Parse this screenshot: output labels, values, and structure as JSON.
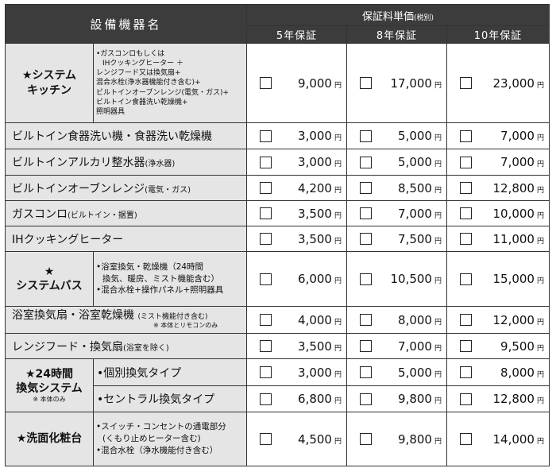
{
  "header": {
    "equipment": "設備機器名",
    "warranty_price": "保証料単価",
    "tax_note": "(税別)",
    "plans": [
      "5年保証",
      "8年保証",
      "10年保証"
    ]
  },
  "currency_unit": "円",
  "rows": [
    {
      "name": "★システムキッチン",
      "name_lines": [
        "★システム",
        "キッチン"
      ],
      "details": [
        "•ガスコンロもしくは",
        "IHクッキングヒーター ＋",
        "レンジフード又は換気扇+",
        "混合水栓(浄水器機能付き含む)+",
        "ビルトインオーブンレンジ(電気・ガス)+",
        "ビルトイン食器洗い乾燥機+",
        "照明器具"
      ],
      "prices": [
        "9,000",
        "17,000",
        "23,000"
      ]
    },
    {
      "name": "ビルトイン食器洗い機・食器洗い乾燥機",
      "prices": [
        "3,000",
        "5,000",
        "7,000"
      ]
    },
    {
      "name": "ビルトインアルカリ整水器",
      "suffix": "(浄水器)",
      "prices": [
        "3,000",
        "5,000",
        "7,000"
      ]
    },
    {
      "name": "ビルトインオーブンレンジ",
      "suffix": "(電気・ガス)",
      "prices": [
        "4,200",
        "8,500",
        "12,800"
      ]
    },
    {
      "name": "ガスコンロ",
      "suffix": "(ビルトイン・据置)",
      "prices": [
        "3,500",
        "7,000",
        "10,000"
      ]
    },
    {
      "name": "IHクッキングヒーター",
      "prices": [
        "3,500",
        "7,500",
        "11,000"
      ]
    },
    {
      "name": "★システムバス",
      "name_lines": [
        "★",
        "システムバス"
      ],
      "details": [
        "•浴室換気・乾燥機（24時間",
        "換気、暖房、ミスト機能含む）",
        "•混合水栓+操作パネル+照明器具"
      ],
      "prices": [
        "6,000",
        "10,500",
        "15,000"
      ]
    },
    {
      "name": "浴室換気扇・浴室乾燥機",
      "suffix": "(ミスト機能付き含む)",
      "note": "※ 本体とリモコンのみ",
      "prices": [
        "4,000",
        "8,000",
        "12,000"
      ]
    },
    {
      "name": "レンジフード・換気扇",
      "suffix": "(浴室を除く)",
      "prices": [
        "3,500",
        "7,000",
        "9,500"
      ]
    },
    {
      "name": "★24時間換気システム",
      "name_lines": [
        "★24時間",
        "換気システム"
      ],
      "note": "※ 本体のみ",
      "subrows": [
        {
          "label": "•個別換気タイプ",
          "prices": [
            "3,000",
            "5,000",
            "8,000"
          ]
        },
        {
          "label": "•セントラル換気タイプ",
          "prices": [
            "6,800",
            "9,800",
            "12,800"
          ]
        }
      ]
    },
    {
      "name": "★洗面化粧台",
      "details": [
        "•スイッチ・コンセントの通電部分",
        "(くもり止めヒーター含む)",
        "•混合水栓（浄水機能付き含む）"
      ],
      "prices": [
        "4,500",
        "9,800",
        "14,000"
      ]
    }
  ]
}
